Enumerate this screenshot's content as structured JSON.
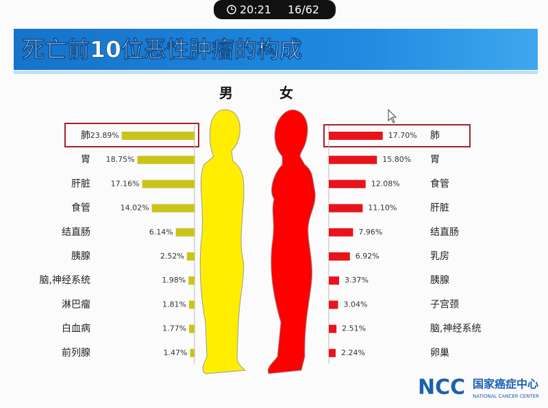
{
  "status": {
    "time": "20:21",
    "page": "16/62"
  },
  "title": "死亡前10位恶性肿瘤的构成",
  "logo": {
    "abbr": "NCC",
    "name": "国家癌症中心",
    "english": "NATIONAL CANCER CENTER"
  },
  "chart_data": [
    {
      "type": "bar",
      "title": "男",
      "color": "#c9c41a",
      "categories": [
        "肺",
        "胃",
        "肝脏",
        "食管",
        "结直肠",
        "胰腺",
        "脑,神经系统",
        "淋巴瘤",
        "白血病",
        "前列腺"
      ],
      "values": [
        23.89,
        18.75,
        17.16,
        14.02,
        6.14,
        2.52,
        1.98,
        1.81,
        1.77,
        1.47
      ],
      "value_labels": [
        "23.89%",
        "18.75%",
        "17.16%",
        "14.02%",
        "6.14%",
        "2.52%",
        "1.98%",
        "1.81%",
        "1.77%",
        "1.47%"
      ]
    },
    {
      "type": "bar",
      "title": "女",
      "color": "#e8141c",
      "categories": [
        "肺",
        "胃",
        "食管",
        "肝脏",
        "结直肠",
        "乳房",
        "胰腺",
        "子宫颈",
        "脑,神经系统",
        "卵巢"
      ],
      "values": [
        17.7,
        15.8,
        12.08,
        11.1,
        7.96,
        6.92,
        3.37,
        3.04,
        2.51,
        2.24
      ],
      "value_labels": [
        "17.70%",
        "15.80%",
        "12.08%",
        "11.10%",
        "7.96%",
        "6.92%",
        "3.37%",
        "3.04%",
        "2.51%",
        "2.24%"
      ]
    }
  ]
}
